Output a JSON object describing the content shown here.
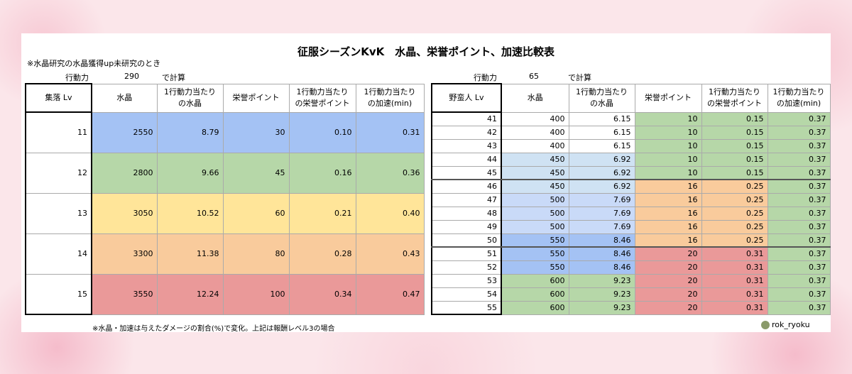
{
  "title": "征服シーズンKvK　水晶、栄誉ポイント、加速比較表",
  "note": "※水晶研究の水晶獲得up未研究のとき",
  "left": {
    "label": "行動力",
    "value": "290",
    "suffix": "で計算",
    "headers": [
      [
        "集落 Lv"
      ],
      [
        "水晶"
      ],
      [
        "1行動力当たり",
        "の水晶"
      ],
      [
        "栄誉ポイント"
      ],
      [
        "1行動力当たり",
        "の栄誉ポイント"
      ],
      [
        "1行動力当たり",
        "の加速(min)"
      ]
    ],
    "rows": [
      [
        "11",
        "2550",
        "8.79",
        "30",
        "0.10",
        "0.31"
      ],
      [
        "12",
        "2800",
        "9.66",
        "45",
        "0.16",
        "0.36"
      ],
      [
        "13",
        "3050",
        "10.52",
        "60",
        "0.21",
        "0.40"
      ],
      [
        "14",
        "3300",
        "11.38",
        "80",
        "0.28",
        "0.43"
      ],
      [
        "15",
        "3550",
        "12.24",
        "100",
        "0.34",
        "0.47"
      ]
    ]
  },
  "right": {
    "label": "行動力",
    "value": "65",
    "suffix": "で計算",
    "headers": [
      [
        "野蛮人 Lv"
      ],
      [
        "水晶"
      ],
      [
        "1行動力当たり",
        "の水晶"
      ],
      [
        "栄誉ポイント"
      ],
      [
        "1行動力当たり",
        "の栄誉ポイント"
      ],
      [
        "1行動力当たり",
        "の加速(min)"
      ]
    ],
    "rows": [
      [
        "41",
        "400",
        "6.15",
        "10",
        "0.15",
        "0.37"
      ],
      [
        "42",
        "400",
        "6.15",
        "10",
        "0.15",
        "0.37"
      ],
      [
        "43",
        "400",
        "6.15",
        "10",
        "0.15",
        "0.37"
      ],
      [
        "44",
        "450",
        "6.92",
        "10",
        "0.15",
        "0.37"
      ],
      [
        "45",
        "450",
        "6.92",
        "10",
        "0.15",
        "0.37"
      ],
      [
        "46",
        "450",
        "6.92",
        "16",
        "0.25",
        "0.37"
      ],
      [
        "47",
        "500",
        "7.69",
        "16",
        "0.25",
        "0.37"
      ],
      [
        "48",
        "500",
        "7.69",
        "16",
        "0.25",
        "0.37"
      ],
      [
        "49",
        "500",
        "7.69",
        "16",
        "0.25",
        "0.37"
      ],
      [
        "50",
        "550",
        "8.46",
        "16",
        "0.25",
        "0.37"
      ],
      [
        "51",
        "550",
        "8.46",
        "20",
        "0.31",
        "0.37"
      ],
      [
        "52",
        "550",
        "8.46",
        "20",
        "0.31",
        "0.37"
      ],
      [
        "53",
        "600",
        "9.23",
        "20",
        "0.31",
        "0.37"
      ],
      [
        "54",
        "600",
        "9.23",
        "20",
        "0.31",
        "0.37"
      ],
      [
        "55",
        "600",
        "9.23",
        "20",
        "0.31",
        "0.37"
      ]
    ]
  },
  "footnote": "※水晶・加速は与えたダメージの割合(%)で変化。上記は報酬レベル3の場合",
  "credit": "rok_ryoku"
}
